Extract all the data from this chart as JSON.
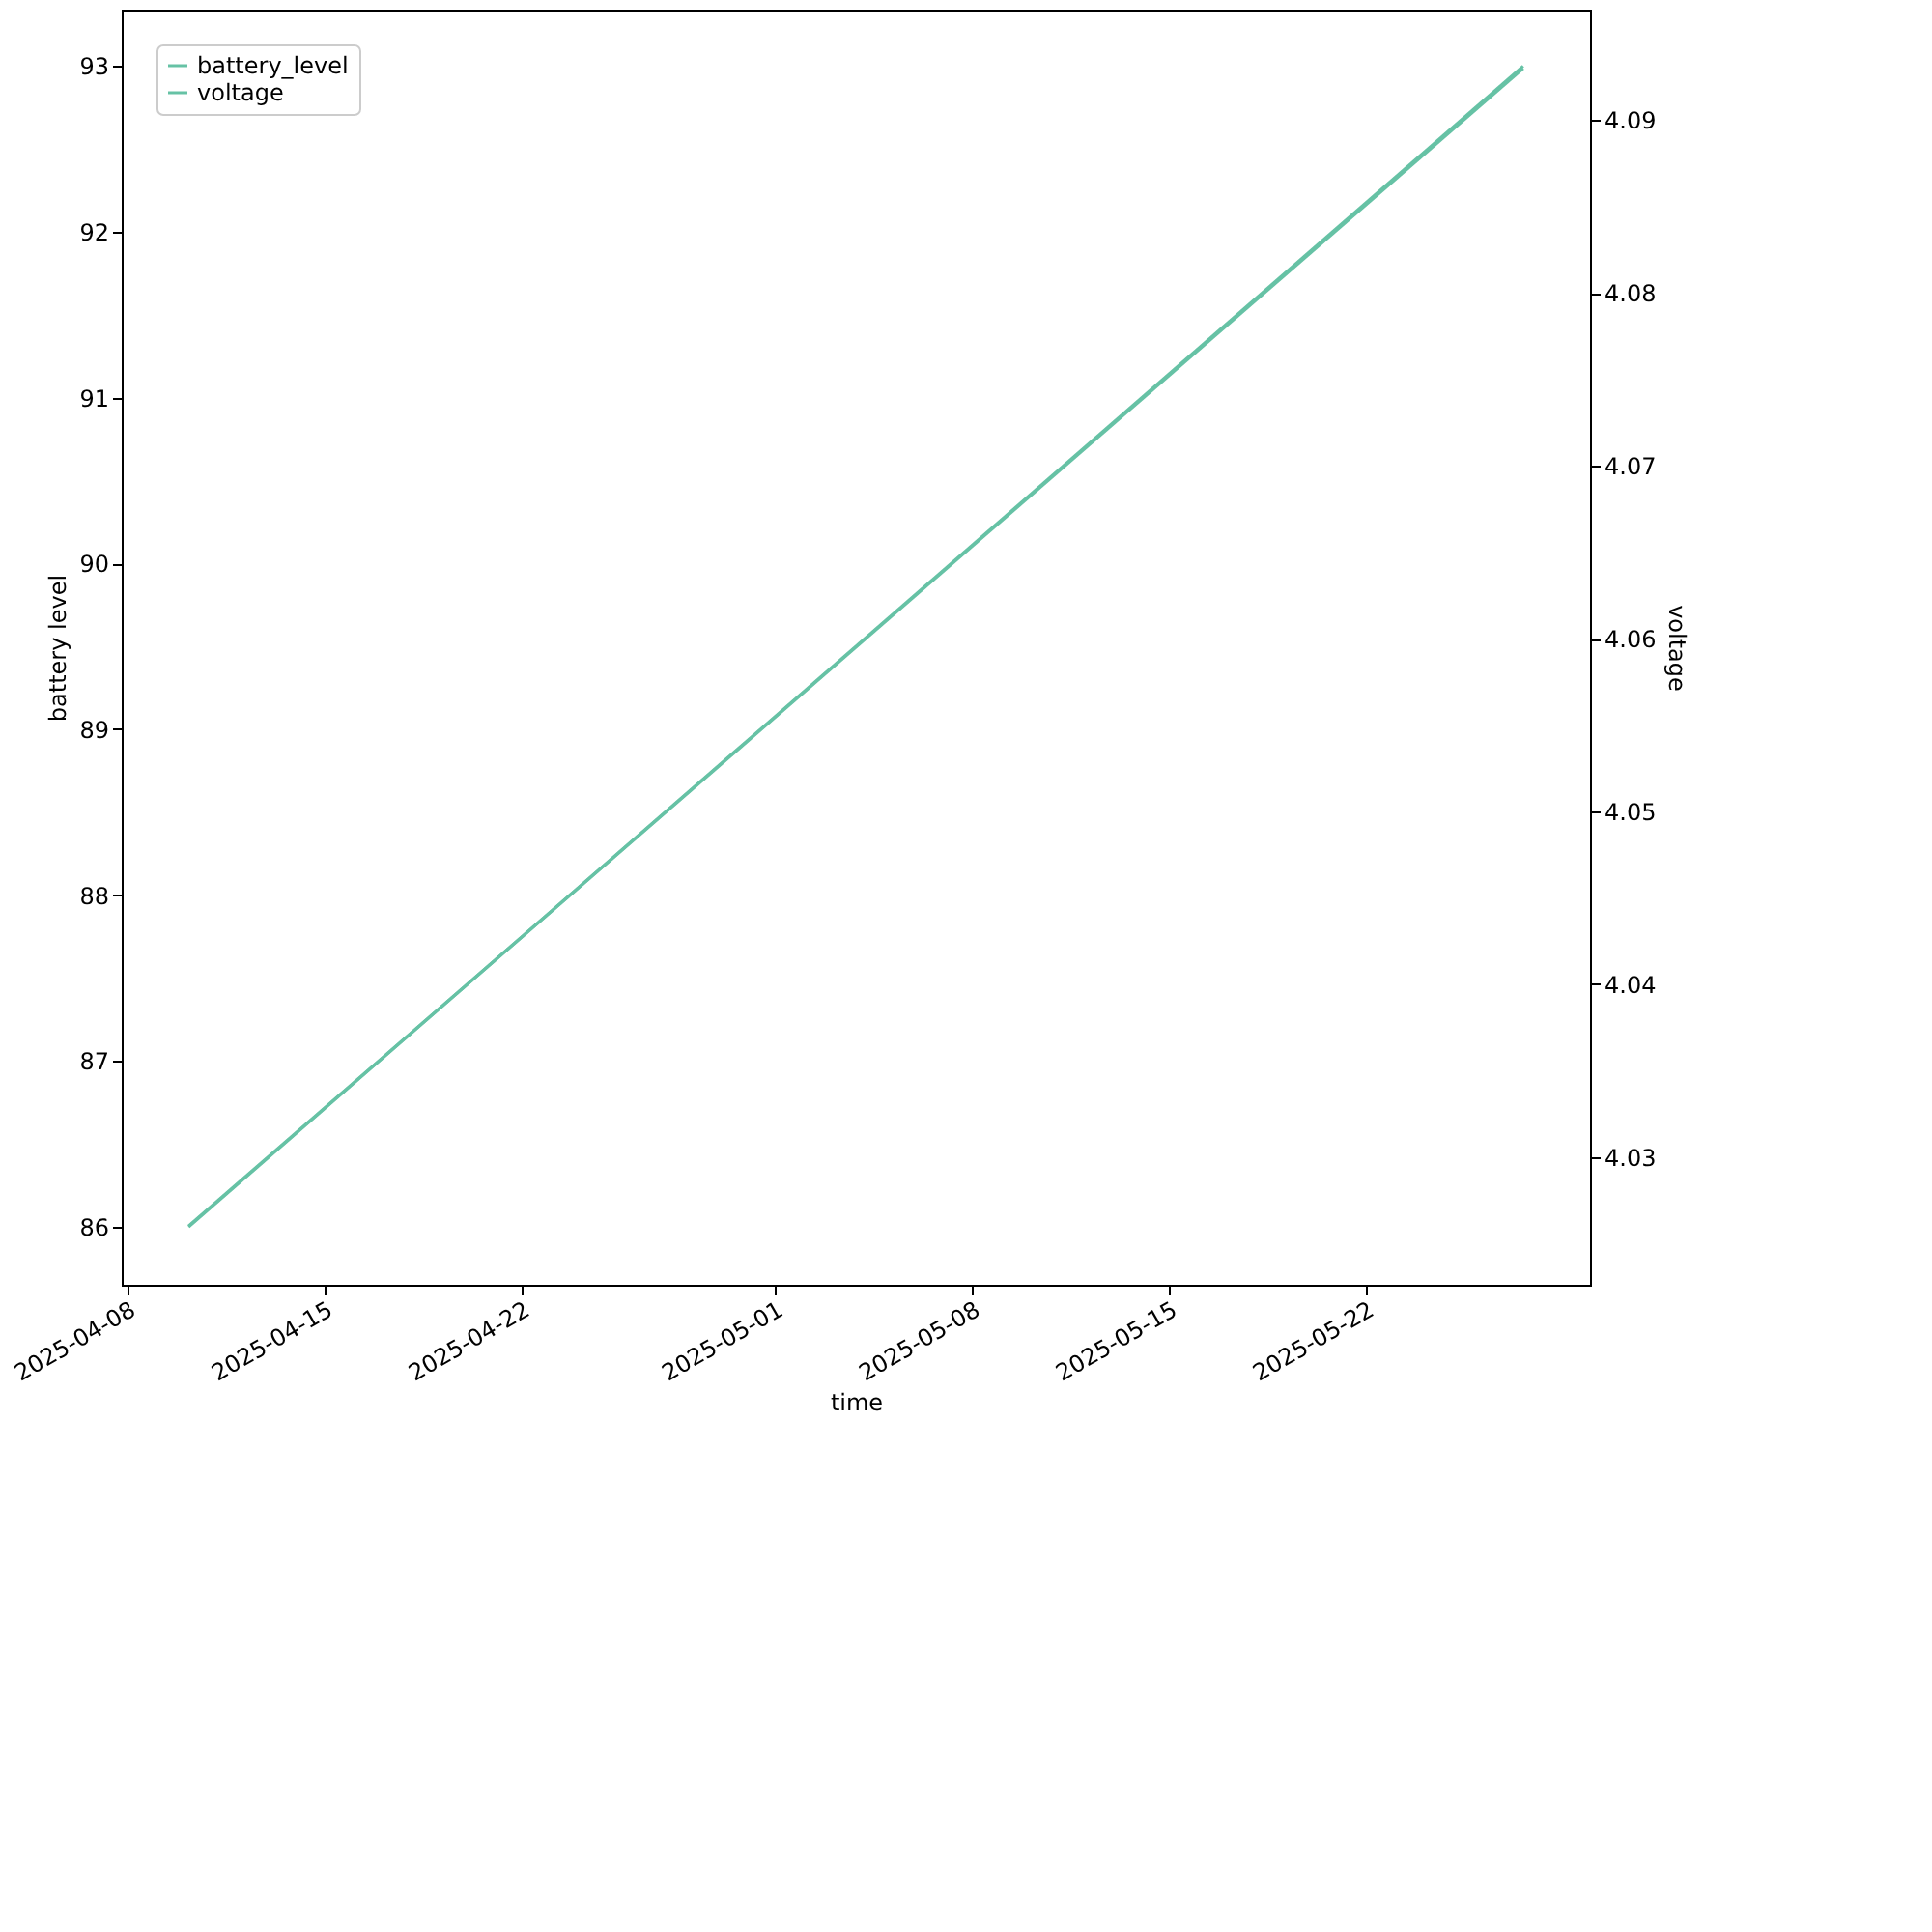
{
  "chart_data": {
    "type": "line",
    "xlabel": "time",
    "ylabel": "battery level",
    "y2label": "voltage",
    "series": [
      {
        "name": "battery_level",
        "color": "#66c2a5",
        "x": [
          "2025-04-10T04:00",
          "2025-05-27T14:00"
        ],
        "values": [
          86.0,
          93.0
        ]
      },
      {
        "name": "voltage",
        "color": "#66c2a5",
        "axis": "y2",
        "x": [
          "2025-04-10T04:00",
          "2025-05-27T14:00"
        ],
        "values": [
          4.026,
          4.093
        ]
      }
    ],
    "xlim": [
      "2025-04-07T19:00",
      "2025-05-29T23:00"
    ],
    "xticks": [
      "2025-04-08",
      "2025-04-15",
      "2025-04-22",
      "2025-05-01",
      "2025-05-08",
      "2025-05-15",
      "2025-05-22"
    ],
    "ylim": [
      85.65,
      93.34
    ],
    "yticks": [
      86,
      87,
      88,
      89,
      90,
      91,
      92,
      93
    ],
    "y2lim": [
      4.0226,
      4.0964
    ],
    "y2ticks": [
      4.03,
      4.04,
      4.05,
      4.06,
      4.07,
      4.08,
      4.09
    ],
    "legend": "top left",
    "grid": false,
    "marker": "none",
    "line_style": "solid"
  }
}
